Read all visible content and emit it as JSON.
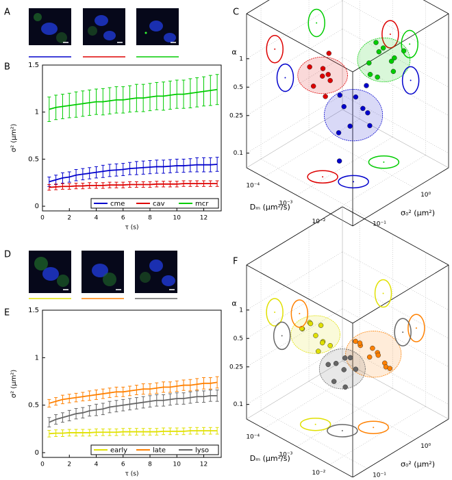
{
  "panel_labels": [
    "A",
    "B",
    "C",
    "D",
    "E",
    "F"
  ],
  "chart_data": [
    {
      "type": "line",
      "xlabel": "τ (s)",
      "ylabel": "σ² (μm²)",
      "legend": "lower right",
      "x": [
        0.5,
        1,
        1.5,
        2,
        2.5,
        3,
        3.5,
        4,
        4.5,
        5,
        5.5,
        6,
        6.5,
        7,
        7.5,
        8,
        8.5,
        9,
        9.5,
        10,
        10.5,
        11,
        11.5,
        12,
        12.5,
        13
      ],
      "xlim": [
        0,
        13.3
      ],
      "xticks": [
        0,
        2,
        4,
        6,
        8,
        10,
        12
      ],
      "ylim": [
        -0.05,
        1.5
      ],
      "yticks": [
        0,
        0.5,
        1,
        1.5
      ],
      "series": [
        {
          "name": "cme",
          "color": "#0000cc",
          "values": [
            0.26,
            0.28,
            0.3,
            0.31,
            0.33,
            0.34,
            0.35,
            0.36,
            0.37,
            0.38,
            0.385,
            0.39,
            0.4,
            0.405,
            0.41,
            0.415,
            0.42,
            0.42,
            0.425,
            0.43,
            0.43,
            0.435,
            0.44,
            0.44,
            0.44,
            0.445
          ],
          "errors": [
            0.05,
            0.05,
            0.055,
            0.055,
            0.06,
            0.06,
            0.06,
            0.06,
            0.065,
            0.065,
            0.065,
            0.065,
            0.065,
            0.07,
            0.07,
            0.07,
            0.07,
            0.07,
            0.07,
            0.07,
            0.07,
            0.07,
            0.075,
            0.075,
            0.075,
            0.075
          ]
        },
        {
          "name": "cav",
          "color": "#dd0000",
          "values": [
            0.2,
            0.205,
            0.21,
            0.21,
            0.215,
            0.215,
            0.22,
            0.22,
            0.22,
            0.225,
            0.225,
            0.225,
            0.23,
            0.23,
            0.23,
            0.23,
            0.235,
            0.235,
            0.235,
            0.235,
            0.24,
            0.24,
            0.24,
            0.24,
            0.24,
            0.24
          ],
          "errors": [
            0.03,
            0.03,
            0.03,
            0.03,
            0.03,
            0.03,
            0.03,
            0.03,
            0.03,
            0.03,
            0.03,
            0.03,
            0.03,
            0.03,
            0.03,
            0.03,
            0.03,
            0.03,
            0.03,
            0.03,
            0.03,
            0.03,
            0.03,
            0.03,
            0.03,
            0.03
          ]
        },
        {
          "name": "mcr",
          "color": "#00cc00",
          "values": [
            1.03,
            1.05,
            1.06,
            1.07,
            1.08,
            1.09,
            1.1,
            1.11,
            1.11,
            1.12,
            1.13,
            1.13,
            1.14,
            1.15,
            1.15,
            1.16,
            1.17,
            1.17,
            1.18,
            1.19,
            1.19,
            1.2,
            1.21,
            1.22,
            1.23,
            1.24
          ],
          "errors": [
            0.13,
            0.13,
            0.13,
            0.13,
            0.135,
            0.135,
            0.135,
            0.135,
            0.14,
            0.14,
            0.14,
            0.14,
            0.14,
            0.145,
            0.145,
            0.145,
            0.145,
            0.15,
            0.15,
            0.15,
            0.15,
            0.155,
            0.155,
            0.155,
            0.16,
            0.16
          ]
        }
      ]
    },
    {
      "type": "scatter3d",
      "xlabel": "Dₘ (μm²/s)",
      "ylabel": "σ₀² (μm²)",
      "zlabel": "α",
      "log": true,
      "xlim": [
        3e-05,
        0.05
      ],
      "xticks": [
        {
          "value": 0.0001,
          "label": "10⁻⁴"
        },
        {
          "value": 0.001,
          "label": "10⁻³"
        },
        {
          "value": 0.01,
          "label": "10⁻²"
        }
      ],
      "ylim": [
        0.05,
        5
      ],
      "yticks": [
        {
          "value": 0.1,
          "label": "10⁻¹"
        },
        {
          "value": 1,
          "label": "10⁰"
        }
      ],
      "zlim": [
        0.07,
        3
      ],
      "zticks": [
        0.1,
        0.25,
        0.5,
        1
      ],
      "series": [
        {
          "color": "#dd0000",
          "x": [
            0.0005,
            0.0008,
            0.001,
            0.0012,
            0.0007,
            0.0015,
            0.0009,
            0.0006
          ],
          "y": [
            0.15,
            0.2,
            0.25,
            0.2,
            0.3,
            0.15,
            0.12,
            0.25
          ],
          "z": [
            1,
            0.8,
            0.7,
            0.9,
            1.2,
            0.6,
            0.75,
            0.85
          ]
        },
        {
          "color": "#00cc00",
          "x": [
            0.002,
            0.003,
            0.004,
            0.0025,
            0.005,
            0.003,
            0.006,
            0.002,
            0.004,
            0.0035
          ],
          "y": [
            1,
            1.5,
            2,
            1.2,
            1.8,
            0.8,
            2.5,
            1.5,
            1,
            2
          ],
          "z": [
            0.8,
            1.1,
            0.6,
            1.3,
            0.9,
            0.7,
            1,
            0.5,
            1.2,
            0.75
          ]
        },
        {
          "color": "#0000cc",
          "x": [
            0.002,
            0.003,
            0.004,
            0.005,
            0.0025,
            0.006,
            0.0035,
            0.0015,
            0.008,
            0.004
          ],
          "y": [
            0.3,
            0.4,
            0.25,
            0.5,
            0.2,
            0.35,
            0.6,
            0.3,
            0.4,
            0.15
          ],
          "z": [
            0.4,
            0.5,
            0.3,
            0.35,
            0.25,
            0.45,
            0.6,
            0.5,
            0.3,
            0.15
          ]
        }
      ]
    },
    {
      "type": "line",
      "xlabel": "τ (s)",
      "ylabel": "σ² (μm²)",
      "legend": "lower right",
      "x": [
        0.5,
        1,
        1.5,
        2,
        2.5,
        3,
        3.5,
        4,
        4.5,
        5,
        5.5,
        6,
        6.5,
        7,
        7.5,
        8,
        8.5,
        9,
        9.5,
        10,
        10.5,
        11,
        11.5,
        12,
        12.5,
        13
      ],
      "xlim": [
        0,
        13.3
      ],
      "xticks": [
        0,
        2,
        4,
        6,
        8,
        10,
        12
      ],
      "ylim": [
        -0.05,
        1.5
      ],
      "yticks": [
        0,
        0.5,
        1,
        1.5
      ],
      "series": [
        {
          "name": "early",
          "color": "#e0e000",
          "values": [
            0.2,
            0.205,
            0.205,
            0.21,
            0.21,
            0.21,
            0.21,
            0.215,
            0.215,
            0.215,
            0.215,
            0.22,
            0.22,
            0.22,
            0.22,
            0.22,
            0.22,
            0.225,
            0.225,
            0.225,
            0.225,
            0.23,
            0.23,
            0.23,
            0.23,
            0.23
          ],
          "errors": [
            0.035,
            0.035,
            0.035,
            0.035,
            0.035,
            0.035,
            0.035,
            0.035,
            0.035,
            0.035,
            0.035,
            0.035,
            0.035,
            0.035,
            0.035,
            0.035,
            0.035,
            0.035,
            0.035,
            0.035,
            0.035,
            0.035,
            0.035,
            0.035,
            0.035,
            0.035
          ]
        },
        {
          "name": "late",
          "color": "#ff8000",
          "values": [
            0.52,
            0.54,
            0.56,
            0.57,
            0.58,
            0.59,
            0.6,
            0.61,
            0.62,
            0.63,
            0.64,
            0.64,
            0.65,
            0.66,
            0.67,
            0.67,
            0.68,
            0.69,
            0.69,
            0.7,
            0.71,
            0.71,
            0.72,
            0.73,
            0.73,
            0.74
          ],
          "errors": [
            0.04,
            0.04,
            0.045,
            0.045,
            0.045,
            0.045,
            0.05,
            0.05,
            0.05,
            0.05,
            0.05,
            0.05,
            0.05,
            0.05,
            0.055,
            0.055,
            0.055,
            0.055,
            0.055,
            0.055,
            0.055,
            0.06,
            0.06,
            0.06,
            0.06,
            0.06
          ]
        },
        {
          "name": "lyso",
          "color": "#666666",
          "values": [
            0.32,
            0.35,
            0.37,
            0.39,
            0.41,
            0.42,
            0.44,
            0.45,
            0.46,
            0.48,
            0.49,
            0.5,
            0.51,
            0.52,
            0.53,
            0.54,
            0.55,
            0.55,
            0.56,
            0.57,
            0.57,
            0.58,
            0.59,
            0.59,
            0.6,
            0.6
          ],
          "errors": [
            0.05,
            0.05,
            0.05,
            0.055,
            0.055,
            0.055,
            0.055,
            0.06,
            0.06,
            0.06,
            0.06,
            0.06,
            0.06,
            0.06,
            0.06,
            0.06,
            0.06,
            0.06,
            0.06,
            0.06,
            0.06,
            0.06,
            0.06,
            0.06,
            0.06,
            0.06
          ]
        }
      ]
    },
    {
      "type": "scatter3d",
      "xlabel": "Dₘ (μm²/s)",
      "ylabel": "σ₀² (μm²)",
      "zlabel": "α",
      "log": true,
      "xlim": [
        3e-05,
        0.05
      ],
      "xticks": [
        {
          "value": 0.0001,
          "label": "10⁻⁴"
        },
        {
          "value": 0.001,
          "label": "10⁻³"
        },
        {
          "value": 0.01,
          "label": "10⁻²"
        }
      ],
      "ylim": [
        0.05,
        5
      ],
      "yticks": [
        {
          "value": 0.1,
          "label": "10⁻¹"
        },
        {
          "value": 1,
          "label": "10⁰"
        }
      ],
      "zlim": [
        0.07,
        3
      ],
      "zticks": [
        0.1,
        0.25,
        0.5,
        1
      ],
      "series": [
        {
          "color": "#e0e000",
          "x": [
            0.0003,
            0.0005,
            0.0004,
            0.0006,
            0.0008,
            0.0004,
            0.0005,
            0.0007,
            0.001,
            0.00035
          ],
          "y": [
            0.15,
            0.2,
            0.12,
            0.25,
            0.2,
            0.3,
            0.15,
            0.18,
            0.25,
            0.2
          ],
          "z": [
            0.7,
            0.6,
            0.8,
            0.5,
            0.55,
            0.65,
            0.9,
            0.45,
            0.5,
            0.75
          ]
        },
        {
          "color": "#ff8000",
          "x": [
            0.003,
            0.005,
            0.004,
            0.006,
            0.008,
            0.0035,
            0.005,
            0.007,
            0.01,
            0.0045
          ],
          "y": [
            0.5,
            0.8,
            0.4,
            1,
            0.6,
            0.7,
            1.2,
            0.5,
            0.9,
            0.3
          ],
          "z": [
            0.5,
            0.4,
            0.6,
            0.3,
            0.45,
            0.35,
            0.25,
            0.55,
            0.3,
            0.7
          ]
        },
        {
          "color": "#666666",
          "x": [
            0.0015,
            0.002,
            0.0025,
            0.0018,
            0.003,
            0.0022,
            0.0012,
            0.0028
          ],
          "y": [
            0.25,
            0.3,
            0.35,
            0.2,
            0.4,
            0.3,
            0.2,
            0.25
          ],
          "z": [
            0.35,
            0.3,
            0.4,
            0.25,
            0.3,
            0.2,
            0.35,
            0.45
          ]
        }
      ]
    }
  ]
}
